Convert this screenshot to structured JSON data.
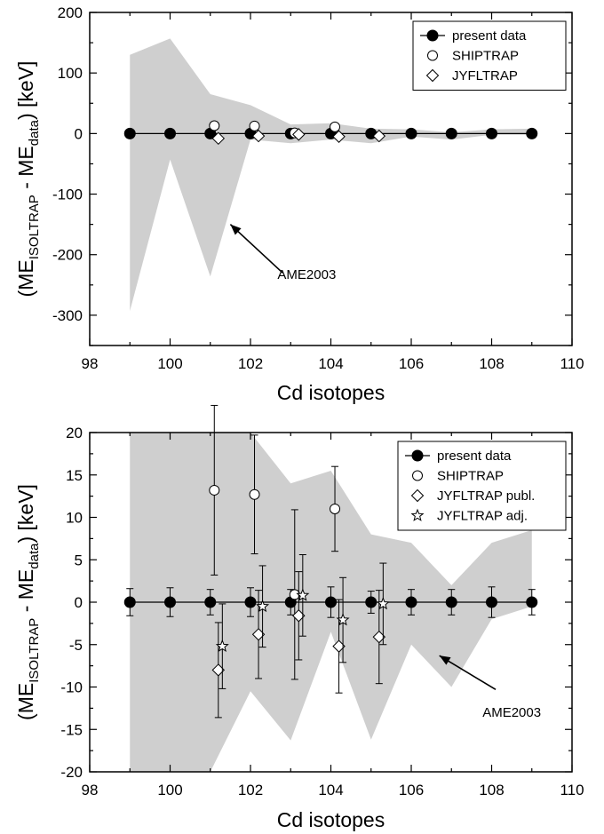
{
  "chart_data": [
    {
      "type": "scatter",
      "xlabel": "Cd isotopes",
      "ylabel": "(ME_ISOLTRAP - ME_data) [keV]",
      "ylabel_parts": {
        "open": "(ME",
        "sub1": "ISOLTRAP",
        "mid": " - ME",
        "sub2": "data",
        "close": ") [keV]"
      },
      "xlim": [
        98,
        110
      ],
      "ylim": [
        -350,
        200
      ],
      "xticks": [
        98,
        100,
        102,
        104,
        106,
        108,
        110
      ],
      "yticks": [
        -300,
        -200,
        -100,
        0,
        100,
        200
      ],
      "legend_position": "top-right",
      "band": {
        "name": "AME2003",
        "x": [
          99,
          100,
          101,
          102,
          103,
          104,
          105,
          106,
          107,
          108,
          109
        ],
        "upper": [
          130,
          157,
          65,
          47,
          15,
          17,
          8,
          7,
          2,
          7,
          8
        ],
        "lower": [
          -293,
          -43,
          -236,
          -10,
          -16,
          -10,
          -16,
          -5,
          -10,
          -2,
          -2
        ]
      },
      "series": [
        {
          "name": "present data",
          "marker": "filled-circle",
          "line": true,
          "x": [
            99,
            100,
            101,
            102,
            103,
            104,
            105,
            106,
            107,
            108,
            109
          ],
          "y": [
            0,
            0,
            0,
            0,
            0,
            0,
            0,
            0,
            0,
            0,
            0
          ]
        },
        {
          "name": "SHIPTRAP",
          "marker": "open-circle",
          "x": [
            101.1,
            102.1,
            103.1,
            104.1
          ],
          "y": [
            13,
            12.5,
            1,
            11
          ]
        },
        {
          "name": "JYFLTRAP",
          "marker": "open-diamond",
          "x": [
            101.2,
            102.2,
            103.2,
            104.2,
            105.2
          ],
          "y": [
            -8,
            -4,
            -1.5,
            -5,
            -4
          ]
        }
      ],
      "annotation": {
        "text": "AME2003",
        "arrow_from": [
          102.8,
          -230
        ],
        "arrow_to": [
          101.5,
          -150
        ],
        "text_at": [
          103.4,
          -240
        ]
      }
    },
    {
      "type": "scatter",
      "xlabel": "Cd isotopes",
      "ylabel": "(ME_ISOLTRAP - ME_data) [keV]",
      "ylabel_parts": {
        "open": "(ME",
        "sub1": "ISOLTRAP",
        "mid": " - ME",
        "sub2": "data",
        "close": ") [keV]"
      },
      "xlim": [
        98,
        110
      ],
      "ylim": [
        -20,
        20
      ],
      "xticks": [
        98,
        100,
        102,
        104,
        106,
        108,
        110
      ],
      "yticks": [
        -20,
        -15,
        -10,
        -5,
        0,
        5,
        10,
        15,
        20
      ],
      "legend_position": "top-right",
      "band": {
        "name": "AME2003",
        "x": [
          99,
          100,
          101,
          102,
          103,
          104,
          105,
          106,
          107,
          108,
          109
        ],
        "upper": [
          20,
          20,
          20,
          20,
          14,
          15.5,
          8,
          7,
          2,
          7,
          8.5
        ],
        "lower": [
          -20,
          -20,
          -20,
          -10.5,
          -16.3,
          -3.5,
          -16.2,
          -5,
          -10,
          -2,
          -0.5
        ]
      },
      "series": [
        {
          "name": "present data",
          "marker": "filled-circle",
          "line": true,
          "x": [
            99,
            100,
            101,
            102,
            103,
            104,
            105,
            106,
            107,
            108,
            109
          ],
          "y": [
            0,
            0,
            0,
            0,
            0,
            0,
            0,
            0,
            0,
            0,
            0
          ],
          "err": [
            1.6,
            1.7,
            1.5,
            1.7,
            1.5,
            1.8,
            1.3,
            1.5,
            1.5,
            1.8,
            1.5
          ]
        },
        {
          "name": "SHIPTRAP",
          "marker": "open-circle",
          "x": [
            101.1,
            102.1,
            103.1,
            104.1
          ],
          "y": [
            13.2,
            12.7,
            0.9,
            11
          ],
          "err": [
            10,
            7,
            10,
            5
          ]
        },
        {
          "name": "JYFLTRAP publ.",
          "marker": "open-diamond",
          "x": [
            101.2,
            102.2,
            103.2,
            104.2,
            105.2
          ],
          "y": [
            -8,
            -3.8,
            -1.6,
            -5.2,
            -4.1
          ],
          "err": [
            5.6,
            5.2,
            5.2,
            5.5,
            5.5
          ]
        },
        {
          "name": "JYFLTRAP adj.",
          "marker": "open-star",
          "x": [
            101.3,
            102.3,
            103.3,
            104.3,
            105.3
          ],
          "y": [
            -5.2,
            -0.5,
            0.8,
            -2.1,
            -0.2
          ],
          "err": [
            5,
            4.8,
            4.8,
            5,
            4.8
          ]
        }
      ],
      "annotation": {
        "text": "AME2003",
        "arrow_from": [
          108.1,
          -10.3
        ],
        "arrow_to": [
          106.7,
          -6.3
        ],
        "text_at": [
          108.5,
          -13.5
        ]
      }
    }
  ]
}
